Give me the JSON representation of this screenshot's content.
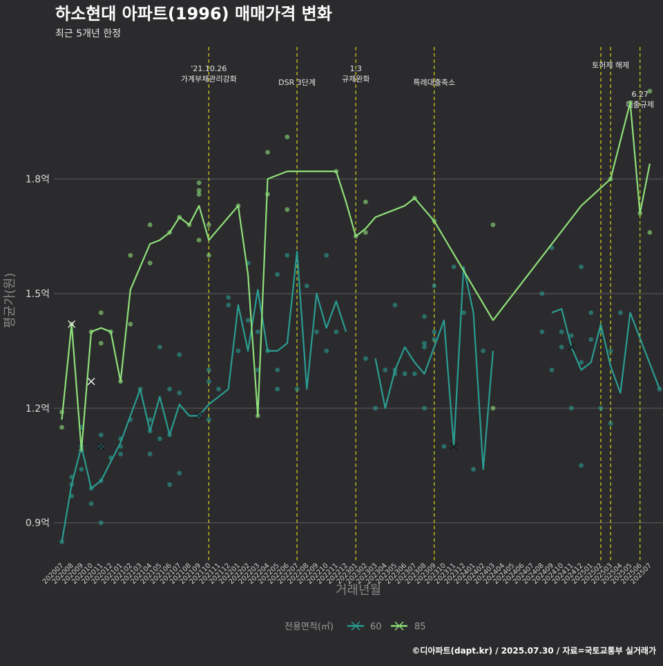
{
  "chart_data": {
    "type": "line",
    "title": "하소현대 아파트(1996) 매매가격 변화",
    "subtitle": "최근 5개년 한정",
    "xlabel": "거래년월",
    "ylabel": "평균가(원)",
    "caption": "©디아파트(dapt.kr) / 2025.07.30 / 자료=국토교통부 실거래가",
    "legend": {
      "title": "전용면적(㎡)",
      "placement": "bottom"
    },
    "colors": {
      "60": "#2a9d92",
      "85": "#8fe07a",
      "vline": "#d9d51a",
      "grid": "#5e5e5e"
    },
    "ylim": [
      0.8,
      2.16
    ],
    "yticks": [
      0.9,
      1.2,
      1.5,
      1.8
    ],
    "ytick_labels": [
      "0.9억",
      "1.2억",
      "1.5억",
      "1.8억"
    ],
    "categories": [
      "202007",
      "202008",
      "202009",
      "202010",
      "202011",
      "202012",
      "202101",
      "202102",
      "202103",
      "202104",
      "202105",
      "202106",
      "202107",
      "202108",
      "202109",
      "202110",
      "202111",
      "202112",
      "202201",
      "202202",
      "202203",
      "202204",
      "202205",
      "202206",
      "202207",
      "202208",
      "202209",
      "202210",
      "202211",
      "202212",
      "202301",
      "202302",
      "202303",
      "202304",
      "202305",
      "202306",
      "202307",
      "202308",
      "202309",
      "202310",
      "202311",
      "202312",
      "202401",
      "202402",
      "202403",
      "202404",
      "202405",
      "202406",
      "202407",
      "202408",
      "202409",
      "202410",
      "202411",
      "202412",
      "202501",
      "202502",
      "202503",
      "202504",
      "202505",
      "202506",
      "202507"
    ],
    "series": [
      {
        "name": "60",
        "line": [
          [
            [
              0,
              0.85
            ],
            [
              1,
              1.0
            ],
            [
              2,
              1.1
            ],
            [
              3,
              0.99
            ],
            [
              4,
              1.01
            ],
            [
              5,
              1.06
            ],
            [
              6,
              1.11
            ],
            [
              7,
              1.18
            ],
            [
              8,
              1.25
            ],
            [
              9,
              1.14
            ],
            [
              10,
              1.23
            ],
            [
              11,
              1.13
            ],
            [
              12,
              1.21
            ],
            [
              13,
              1.18
            ],
            [
              14,
              1.18
            ],
            [
              15,
              1.21
            ],
            [
              16,
              1.23
            ],
            [
              17,
              1.25
            ],
            [
              18,
              1.47
            ],
            [
              19,
              1.35
            ],
            [
              20,
              1.51
            ],
            [
              21,
              1.35
            ],
            [
              22,
              1.35
            ],
            [
              23,
              1.37
            ],
            [
              24,
              1.61
            ],
            [
              25,
              1.25
            ],
            [
              26,
              1.5
            ],
            [
              27,
              1.41
            ],
            [
              28,
              1.48
            ],
            [
              29,
              1.4
            ]
          ],
          [
            [
              32,
              1.33
            ],
            [
              33,
              1.2
            ],
            [
              34,
              1.3
            ],
            [
              35,
              1.36
            ],
            [
              36,
              1.32
            ],
            [
              37,
              1.29
            ],
            [
              38,
              1.36
            ],
            [
              39,
              1.43
            ],
            [
              40,
              1.1
            ],
            [
              41,
              1.57
            ],
            [
              42,
              1.45
            ],
            [
              43,
              1.04
            ],
            [
              44,
              1.35
            ]
          ],
          [
            [
              50,
              1.45
            ],
            [
              51,
              1.46
            ],
            [
              52,
              1.36
            ],
            [
              53,
              1.3
            ],
            [
              54,
              1.32
            ],
            [
              55,
              1.42
            ],
            [
              56,
              1.31
            ],
            [
              57,
              1.24
            ],
            [
              58,
              1.45
            ],
            [
              61,
              1.25
            ]
          ]
        ],
        "points": [
          [
            0,
            0.85
          ],
          [
            1,
            0.97
          ],
          [
            1,
            1.0
          ],
          [
            1,
            1.02
          ],
          [
            2,
            1.04
          ],
          [
            2,
            1.1
          ],
          [
            2,
            1.15
          ],
          [
            3,
            0.95
          ],
          [
            3,
            0.99
          ],
          [
            4,
            0.9
          ],
          [
            4,
            1.01
          ],
          [
            4,
            1.1
          ],
          [
            4,
            1.13
          ],
          [
            5,
            1.07
          ],
          [
            6,
            1.08
          ],
          [
            6,
            1.1
          ],
          [
            6,
            1.12
          ],
          [
            7,
            1.17
          ],
          [
            8,
            1.25
          ],
          [
            9,
            1.08
          ],
          [
            9,
            1.14
          ],
          [
            9,
            1.17
          ],
          [
            10,
            1.12
          ],
          [
            10,
            1.36
          ],
          [
            11,
            1.0
          ],
          [
            11,
            1.13
          ],
          [
            11,
            1.25
          ],
          [
            12,
            1.03
          ],
          [
            12,
            1.24
          ],
          [
            12,
            1.34
          ],
          [
            14,
            1.18
          ],
          [
            15,
            1.17
          ],
          [
            15,
            1.27
          ],
          [
            15,
            1.3
          ],
          [
            16,
            1.25
          ],
          [
            17,
            1.47
          ],
          [
            17,
            1.49
          ],
          [
            18,
            1.35
          ],
          [
            19,
            1.43
          ],
          [
            19,
            1.58
          ],
          [
            20,
            1.3
          ],
          [
            20,
            1.4
          ],
          [
            21,
            1.35
          ],
          [
            22,
            1.25
          ],
          [
            22,
            1.3
          ],
          [
            22,
            1.55
          ],
          [
            23,
            1.6
          ],
          [
            24,
            1.25
          ],
          [
            25,
            1.52
          ],
          [
            26,
            1.4
          ],
          [
            27,
            1.35
          ],
          [
            27,
            1.6
          ],
          [
            28,
            1.4
          ],
          [
            31,
            1.33
          ],
          [
            32,
            1.2
          ],
          [
            33,
            1.3
          ],
          [
            34,
            1.29
          ],
          [
            34,
            1.3
          ],
          [
            34,
            1.47
          ],
          [
            35,
            1.29
          ],
          [
            36,
            1.29
          ],
          [
            37,
            1.2
          ],
          [
            37,
            1.36
          ],
          [
            37,
            1.37
          ],
          [
            37,
            1.44
          ],
          [
            38,
            1.38
          ],
          [
            38,
            1.4
          ],
          [
            38,
            1.52
          ],
          [
            39,
            1.1
          ],
          [
            40,
            1.57
          ],
          [
            41,
            1.45
          ],
          [
            42,
            1.04
          ],
          [
            43,
            1.35
          ],
          [
            49,
            1.4
          ],
          [
            49,
            1.5
          ],
          [
            50,
            1.3
          ],
          [
            50,
            1.62
          ],
          [
            51,
            1.36
          ],
          [
            51,
            1.4
          ],
          [
            52,
            1.2
          ],
          [
            52,
            1.39
          ],
          [
            53,
            1.05
          ],
          [
            53,
            1.32
          ],
          [
            53,
            1.57
          ],
          [
            54,
            1.38
          ],
          [
            54,
            1.45
          ],
          [
            55,
            1.2
          ],
          [
            55,
            1.4
          ],
          [
            56,
            1.16
          ],
          [
            56,
            1.35
          ],
          [
            57,
            1.45
          ],
          [
            61,
            1.25
          ]
        ],
        "crosses": [
          [
            1,
            1.42
          ],
          [
            3,
            1.27
          ],
          [
            4,
            1.1
          ],
          [
            14,
            1.18
          ],
          [
            40,
            1.1
          ],
          [
            52,
            1.36
          ],
          [
            4,
            1.1
          ]
        ]
      },
      {
        "name": "85",
        "line": [
          [
            [
              0,
              1.17
            ],
            [
              1,
              1.42
            ],
            [
              2,
              1.09
            ],
            [
              3,
              1.4
            ],
            [
              4,
              1.41
            ],
            [
              5,
              1.4
            ],
            [
              6,
              1.27
            ],
            [
              7,
              1.51
            ],
            [
              8,
              1.57
            ],
            [
              9,
              1.63
            ],
            [
              10,
              1.64
            ],
            [
              11,
              1.66
            ],
            [
              12,
              1.7
            ],
            [
              13,
              1.68
            ],
            [
              14,
              1.73
            ],
            [
              15,
              1.64
            ],
            [
              16,
              1.67
            ],
            [
              17,
              1.7
            ],
            [
              18,
              1.73
            ],
            [
              19,
              1.55
            ],
            [
              20,
              1.18
            ],
            [
              21,
              1.8
            ],
            [
              22,
              1.81
            ],
            [
              23,
              1.82
            ],
            [
              24,
              1.82
            ],
            [
              25,
              1.82
            ],
            [
              26,
              1.82
            ],
            [
              27,
              1.82
            ],
            [
              28,
              1.82
            ],
            [
              29,
              1.74
            ],
            [
              30,
              1.65
            ],
            [
              31,
              1.67
            ],
            [
              32,
              1.7
            ],
            [
              33,
              1.71
            ],
            [
              34,
              1.72
            ],
            [
              35,
              1.73
            ],
            [
              36,
              1.75
            ],
            [
              37,
              1.72
            ],
            [
              38,
              1.69
            ],
            [
              44,
              1.43
            ],
            [
              53,
              1.73
            ],
            [
              56,
              1.8
            ],
            [
              58,
              2.0
            ],
            [
              59,
              1.71
            ],
            [
              60,
              1.84
            ]
          ]
        ],
        "points": [
          [
            0,
            1.15
          ],
          [
            0,
            1.19
          ],
          [
            1,
            1.42
          ],
          [
            2,
            1.09
          ],
          [
            3,
            1.4
          ],
          [
            4,
            1.37
          ],
          [
            4,
            1.45
          ],
          [
            5,
            1.4
          ],
          [
            6,
            1.27
          ],
          [
            7,
            1.42
          ],
          [
            7,
            1.6
          ],
          [
            9,
            1.58
          ],
          [
            9,
            1.68
          ],
          [
            11,
            1.66
          ],
          [
            12,
            1.7
          ],
          [
            13,
            1.68
          ],
          [
            14,
            1.64
          ],
          [
            14,
            1.76
          ],
          [
            14,
            1.77
          ],
          [
            14,
            1.79
          ],
          [
            15,
            1.6
          ],
          [
            15,
            1.68
          ],
          [
            18,
            1.73
          ],
          [
            20,
            1.18
          ],
          [
            21,
            1.76
          ],
          [
            21,
            1.87
          ],
          [
            23,
            1.72
          ],
          [
            23,
            1.91
          ],
          [
            28,
            1.82
          ],
          [
            30,
            1.65
          ],
          [
            31,
            1.66
          ],
          [
            31,
            1.74
          ],
          [
            36,
            1.75
          ],
          [
            38,
            1.69
          ],
          [
            44,
            1.2
          ],
          [
            44,
            1.68
          ],
          [
            56,
            1.8
          ],
          [
            58,
            2.0
          ],
          [
            59,
            1.71
          ],
          [
            60,
            1.66
          ],
          [
            60,
            2.03
          ]
        ],
        "crosses": [
          [
            1,
            1.42
          ],
          [
            3,
            1.27
          ]
        ]
      }
    ],
    "vlines": [
      {
        "x": 15,
        "lines": [
          "'21.10.26",
          "가계부채관리강화"
        ]
      },
      {
        "x": 24,
        "lines": [
          "DSR 3단계"
        ]
      },
      {
        "x": 30,
        "lines": [
          "1.3",
          "규제완화"
        ]
      },
      {
        "x": 38,
        "lines": [
          "특례대출축소"
        ]
      },
      {
        "x": 55,
        "lines": []
      },
      {
        "x": 56,
        "lines": [
          "토허제 해제"
        ]
      },
      {
        "x": 59,
        "lines": [
          "6.27",
          "대출규제"
        ]
      }
    ]
  }
}
